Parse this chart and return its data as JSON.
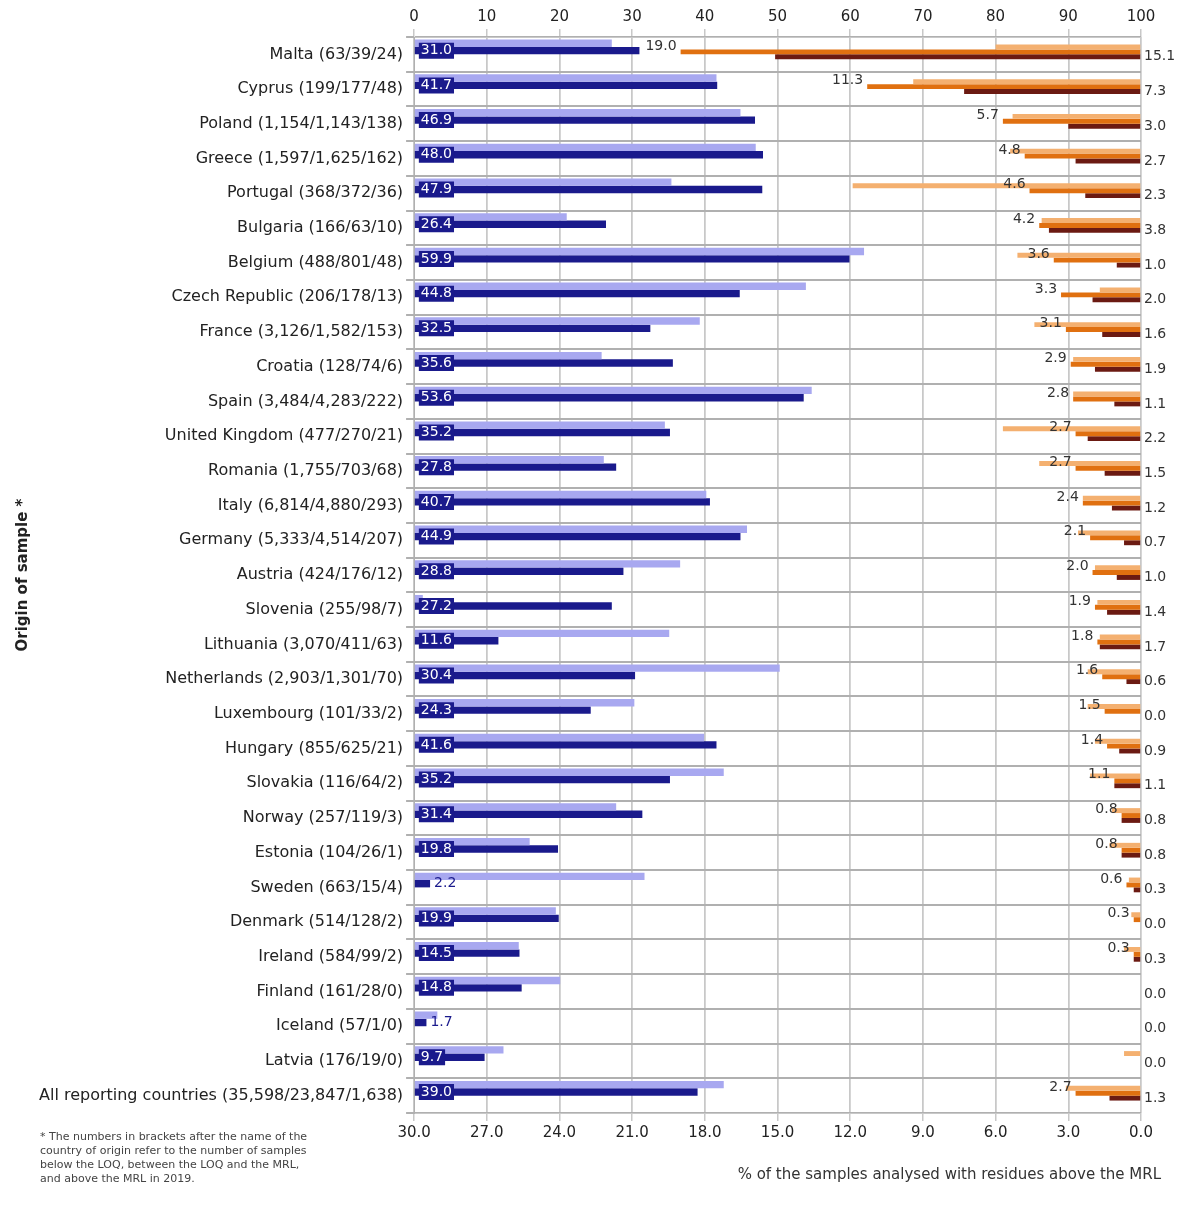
{
  "chart_data": {
    "type": "bar",
    "orientation": "horizontal",
    "ylabel": "Origin of sample *",
    "xlabel": "% of the samples analysed with residues above the MRL",
    "categories": [
      "Malta (63/39/24)",
      "Cyprus (199/177/48)",
      "Poland (1,154/1,143/138)",
      "Greece (1,597/1,625/162)",
      "Portugal (368/372/36)",
      "Bulgaria (166/63/10)",
      "Belgium (488/801/48)",
      "Czech Republic (206/178/13)",
      "France (3,126/1,582/153)",
      "Croatia (128/74/6)",
      "Spain (3,484/4,283/222)",
      "United Kingdom (477/270/21)",
      "Romania (1,755/703/68)",
      "Italy (6,814/4,880/293)",
      "Germany (5,333/4,514/207)",
      "Austria (424/176/12)",
      "Slovenia (255/98/7)",
      "Lithuania (3,070/411/63)",
      "Netherlands (2,903/1,301/70)",
      "Luxembourg (101/33/2)",
      "Hungary (855/625/21)",
      "Slovakia (116/64/2)",
      "Norway (257/119/3)",
      "Estonia (104/26/1)",
      "Sweden (663/15/4)",
      "Denmark (514/128/2)",
      "Ireland (584/99/2)",
      "Finland (161/28/0)",
      "Iceland (57/1/0)",
      "Latvia (176/19/0)",
      "All reporting countries (35,598/23,847/1,638)"
    ],
    "series": [
      {
        "axis": "x2",
        "color": "#a8a8f0",
        "values": [
          27.2,
          41.6,
          44.9,
          47,
          35.4,
          21,
          61.9,
          53.9,
          39.3,
          25.8,
          54.7,
          34.5,
          26.1,
          40.2,
          45.8,
          36.6,
          1.2,
          35.1,
          50.3,
          30.3,
          39.9,
          42.6,
          27.8,
          15.9,
          31.7,
          19.5,
          14.4,
          20.1,
          3.2,
          12.3,
          42.6
        ]
      },
      {
        "axis": "x2",
        "color": "#1a1a8c",
        "values": [
          31.0,
          41.7,
          46.9,
          48.0,
          47.9,
          26.4,
          59.9,
          44.8,
          32.5,
          35.6,
          53.6,
          35.2,
          27.8,
          40.7,
          44.9,
          28.8,
          27.2,
          11.6,
          30.4,
          24.3,
          41.6,
          35.2,
          31.4,
          19.8,
          2.2,
          19.9,
          14.5,
          14.8,
          1.7,
          9.7,
          39.0
        ],
        "value_labels": [
          "31.0",
          "41.7",
          "46.9",
          "48.0",
          "47.9",
          "26.4",
          "59.9",
          "44.8",
          "32.5",
          "35.6",
          "53.6",
          "35.2",
          "27.8",
          "40.7",
          "44.9",
          "28.8",
          "27.2",
          "11.6",
          "30.4",
          "24.3",
          "41.6",
          "35.2",
          "31.4",
          "19.8",
          "2.2",
          "19.9",
          "14.5",
          "14.8",
          "1.7",
          "9.7",
          "39.0"
        ]
      },
      {
        "color": "#f4b070",
        "values": [
          6.0,
          9.4,
          5.3,
          5.4,
          11.9,
          4.1,
          5.1,
          1.7,
          4.4,
          2.8,
          2.8,
          5.7,
          4.2,
          2.4,
          2.6,
          1.9,
          1.8,
          1.7,
          2.2,
          2.2,
          1.9,
          2.1,
          1.2,
          1.3,
          0.5,
          0.4,
          0.7,
          0,
          0,
          0.7,
          3.1
        ]
      },
      {
        "color": "#e07010",
        "values": [
          19.0,
          11.3,
          5.7,
          4.8,
          4.6,
          4.2,
          3.6,
          3.3,
          3.1,
          2.9,
          2.8,
          2.7,
          2.7,
          2.4,
          2.1,
          2.0,
          1.9,
          1.8,
          1.6,
          1.5,
          1.4,
          1.1,
          0.8,
          0.8,
          0.6,
          0.3,
          0.3,
          0,
          0,
          0,
          2.7
        ],
        "value_labels": [
          "19.0",
          "11.3",
          "5.7",
          "4.8",
          "4.6",
          "4.2",
          "3.6",
          "3.3",
          "3.1",
          "2.9",
          "2.8",
          "2.7",
          "2.7",
          "2.4",
          "2.1",
          "2.0",
          "1.9",
          "1.8",
          "1.6",
          "1.5",
          "1.4",
          "1.1",
          "0.8",
          "0.8",
          "0.6",
          "0.3",
          "0.3",
          null,
          null,
          null,
          "2.7"
        ]
      },
      {
        "color": "#6b1a12",
        "values": [
          15.1,
          7.3,
          3.0,
          2.7,
          2.3,
          3.8,
          1.0,
          2.0,
          1.6,
          1.9,
          1.1,
          2.2,
          1.5,
          1.2,
          0.7,
          1.0,
          1.4,
          1.7,
          0.6,
          0.0,
          0.9,
          1.1,
          0.8,
          0.8,
          0.3,
          0.0,
          0.3,
          0.0,
          0.0,
          0.0,
          1.3
        ],
        "value_labels": [
          "15.1",
          "7.3",
          "3.0",
          "2.7",
          "2.3",
          "3.8",
          "1.0",
          "2.0",
          "1.6",
          "1.9",
          "1.1",
          "2.2",
          "1.5",
          "1.2",
          "0.7",
          "1.0",
          "1.4",
          "1.7",
          "0.6",
          "0.0",
          "0.9",
          "1.1",
          "0.8",
          "0.8",
          "0.3",
          "0.0",
          "0.3",
          "0.0",
          "0.0",
          "0.0",
          "1.3"
        ]
      }
    ],
    "xlim": [
      30,
      0
    ],
    "xticks": [
      {
        "value": 30,
        "label": "30.0"
      },
      {
        "value": 27,
        "label": "27.0"
      },
      {
        "value": 24,
        "label": "24.0"
      },
      {
        "value": 21,
        "label": "21.0"
      },
      {
        "value": 18,
        "label": "18.0"
      },
      {
        "value": 15,
        "label": "15.0"
      },
      {
        "value": 12,
        "label": "12.0"
      },
      {
        "value": 9,
        "label": "9.0"
      },
      {
        "value": 6,
        "label": "6.0"
      },
      {
        "value": 3,
        "label": "3.0"
      },
      {
        "value": 0,
        "label": "0.0"
      }
    ],
    "x2lim": [
      0,
      100
    ],
    "x2ticks": [
      0,
      10,
      20,
      30,
      40,
      50,
      60,
      70,
      80,
      90,
      100
    ],
    "grid": true,
    "legend": false,
    "annotations": [
      "* The numbers in brackets after the name of the country of origin refer to the number of samples below the LOQ, between the LOQ and the MRL, and above the MRL in 2019."
    ]
  }
}
